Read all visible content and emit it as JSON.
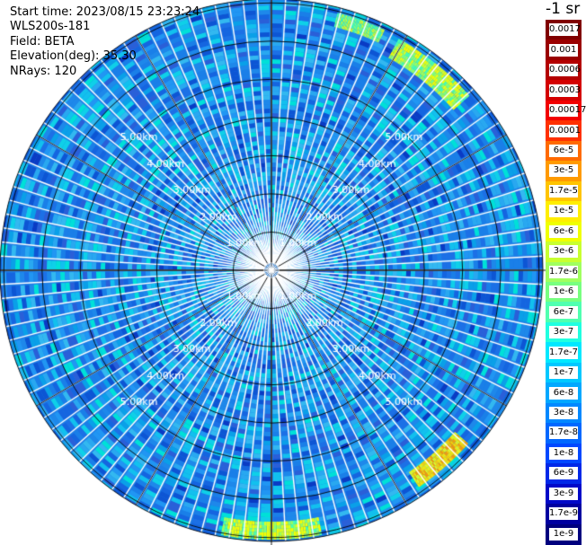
{
  "info": {
    "start_time": "Start time: 2023/08/15 23:23:24",
    "instrument": "WLS200s-181",
    "field": "Field: BETA",
    "elevation": "Elevation(deg): 35.30",
    "nrays": "NRays: 120"
  },
  "unit_label": "-1 sr",
  "range_rings": [
    {
      "value": 1,
      "label": "1.00km"
    },
    {
      "value": 2,
      "label": "2.00km"
    },
    {
      "value": 3,
      "label": "3.00km"
    },
    {
      "value": 4,
      "label": "4.00km"
    },
    {
      "value": 5,
      "label": "5.00km"
    }
  ],
  "plot": {
    "max_range_km": 7.1,
    "n_rays": 120,
    "grid_color": "#000000",
    "background_color": "#1f7fe6",
    "range_label_color": "#ffffff"
  },
  "legend": {
    "labels": [
      "0.0017",
      "0.001",
      "0.0006",
      "0.0003",
      "0.00017",
      "0.0001",
      "6e-5",
      "3e-5",
      "1.7e-5",
      "1e-5",
      "6e-6",
      "3e-6",
      "1.7e-6",
      "1e-6",
      "6e-7",
      "3e-7",
      "1.7e-7",
      "1e-7",
      "6e-8",
      "3e-8",
      "1.7e-8",
      "1e-8",
      "6e-9",
      "3e-9",
      "1.7e-9",
      "1e-9"
    ],
    "colors": [
      "#800000",
      "#9a0000",
      "#b40000",
      "#d40000",
      "#f20000",
      "#ff3000",
      "#ff6a00",
      "#ff9a00",
      "#ffc400",
      "#ffee00",
      "#f0ff00",
      "#c8ff30",
      "#a0ff60",
      "#78ff80",
      "#50ffb0",
      "#20ffe0",
      "#00e8ff",
      "#00c8ff",
      "#00a8ff",
      "#0088ff",
      "#0068ff",
      "#0048ff",
      "#0028e8",
      "#0008c8",
      "#0000a0",
      "#00007e"
    ]
  }
}
